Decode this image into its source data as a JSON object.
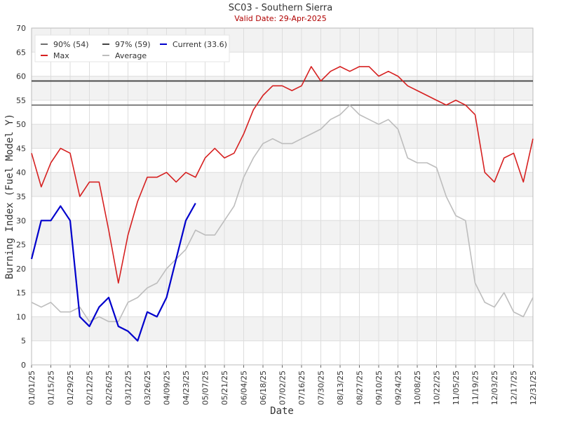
{
  "chart_data": {
    "type": "line",
    "title": "SC03 - Southern Sierra",
    "subtitle": "Valid Date: 29-Apr-2025",
    "x_label": "Date",
    "y_label": "Burning Index (Fuel Model Y)",
    "x": [
      "01/01/25",
      "01/08/25",
      "01/15/25",
      "01/22/25",
      "01/29/25",
      "02/05/25",
      "02/12/25",
      "02/19/25",
      "02/26/25",
      "03/05/25",
      "03/12/25",
      "03/19/25",
      "03/26/25",
      "04/02/25",
      "04/09/25",
      "04/16/25",
      "04/23/25",
      "04/30/25",
      "05/07/25",
      "05/14/25",
      "05/21/25",
      "05/28/25",
      "06/04/25",
      "06/11/25",
      "06/18/25",
      "06/25/25",
      "07/02/25",
      "07/09/25",
      "07/16/25",
      "07/23/25",
      "07/30/25",
      "08/06/25",
      "08/13/25",
      "08/20/25",
      "08/27/25",
      "09/03/25",
      "09/10/25",
      "09/17/25",
      "09/24/25",
      "10/01/25",
      "10/08/25",
      "10/15/25",
      "10/22/25",
      "10/29/25",
      "11/05/25",
      "11/12/25",
      "11/19/25",
      "11/26/25",
      "12/03/25",
      "12/10/25",
      "12/17/25",
      "12/24/25",
      "12/31/25"
    ],
    "xlim": [
      "01/01/25",
      "12/31/25"
    ],
    "xticks": [
      "01/01/25",
      "01/15/25",
      "01/29/25",
      "02/12/25",
      "02/26/25",
      "03/12/25",
      "03/26/25",
      "04/09/25",
      "04/23/25",
      "05/07/25",
      "05/21/25",
      "06/04/25",
      "06/18/25",
      "07/02/25",
      "07/16/25",
      "07/30/25",
      "08/13/25",
      "08/27/25",
      "09/10/25",
      "09/24/25",
      "10/08/25",
      "10/22/25",
      "11/05/25",
      "11/19/25",
      "12/03/25",
      "12/17/25",
      "12/31/25"
    ],
    "ylim": [
      0,
      70
    ],
    "yticks": [
      0,
      5,
      10,
      15,
      20,
      25,
      30,
      35,
      40,
      45,
      50,
      55,
      60,
      65,
      70
    ],
    "grid": true,
    "thresholds": [
      {
        "name": "90% (54)",
        "value": 54,
        "color": "#6e6e6e"
      },
      {
        "name": "97% (59)",
        "value": 59,
        "color": "#444444"
      }
    ],
    "series": [
      {
        "name": "Current (33.6)",
        "color": "#0000cc",
        "values": [
          22,
          30,
          30,
          33,
          30,
          10,
          8,
          12,
          14,
          8,
          7,
          5,
          11,
          10,
          14,
          22,
          30,
          33.6,
          null,
          null,
          null,
          null,
          null,
          null,
          null,
          null,
          null,
          null,
          null,
          null,
          null,
          null,
          null,
          null,
          null,
          null,
          null,
          null,
          null,
          null,
          null,
          null,
          null,
          null,
          null,
          null,
          null,
          null,
          null,
          null,
          null,
          null,
          null
        ]
      },
      {
        "name": "Max",
        "color": "#d62020",
        "values": [
          44,
          37,
          42,
          45,
          44,
          35,
          38,
          38,
          28,
          17,
          27,
          34,
          39,
          39,
          40,
          38,
          40,
          39,
          43,
          45,
          43,
          44,
          48,
          53,
          56,
          58,
          58,
          57,
          58,
          62,
          59,
          61,
          62,
          61,
          62,
          62,
          60,
          61,
          60,
          58,
          57,
          56,
          55,
          54,
          55,
          54,
          52,
          40,
          38,
          43,
          44,
          38,
          47
        ]
      },
      {
        "name": "Average",
        "color": "#bdbdbd",
        "values": [
          13,
          12,
          13,
          11,
          11,
          12,
          9,
          10,
          9,
          9,
          13,
          14,
          16,
          17,
          20,
          22,
          24,
          28,
          27,
          27,
          30,
          33,
          39,
          43,
          46,
          47,
          46,
          46,
          47,
          48,
          49,
          51,
          52,
          54,
          52,
          51,
          50,
          51,
          49,
          43,
          42,
          42,
          41,
          35,
          31,
          30,
          17,
          13,
          12,
          15,
          11,
          10,
          14
        ]
      }
    ]
  }
}
